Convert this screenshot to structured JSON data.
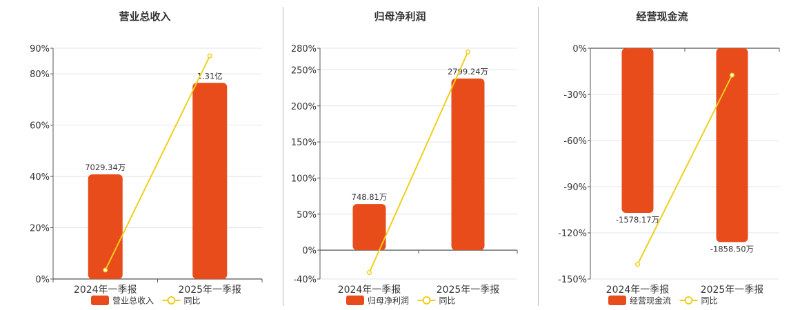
{
  "chart_data": [
    {
      "type": "bar",
      "title": "营业总收入",
      "categories": [
        "2024年一季报",
        "2025年一季报"
      ],
      "y_ticks": [
        "90%",
        "80%",
        "60%",
        "40%",
        "20%",
        "0%"
      ],
      "ylim": [
        0,
        90
      ],
      "grid": true,
      "legend_position": "bottom",
      "series": [
        {
          "name": "营业总收入",
          "type": "bar",
          "values": [
            40.8,
            76.5
          ],
          "labels": [
            "7029.34万",
            "1.31亿"
          ]
        },
        {
          "name": "同比",
          "type": "line",
          "values": [
            3.5,
            87
          ]
        }
      ]
    },
    {
      "type": "bar",
      "title": "归母净利润",
      "categories": [
        "2024年一季报",
        "2025年一季报"
      ],
      "y_ticks": [
        "280%",
        "250%",
        "200%",
        "150%",
        "100%",
        "50%",
        "0%",
        "-40%"
      ],
      "ylim": [
        -40,
        280
      ],
      "grid": true,
      "legend_position": "bottom",
      "series": [
        {
          "name": "归母净利润",
          "type": "bar",
          "values": [
            64,
            238
          ],
          "labels": [
            "748.81万",
            "2799.24万"
          ]
        },
        {
          "name": "同比",
          "type": "line",
          "values": [
            -31,
            275
          ]
        }
      ]
    },
    {
      "type": "bar",
      "title": "经营现金流",
      "categories": [
        "2024年一季报",
        "2025年一季报"
      ],
      "y_ticks": [
        "0%",
        "-30%",
        "-60%",
        "-90%",
        "-120%",
        "-150%"
      ],
      "ylim": [
        -150,
        0
      ],
      "grid": true,
      "legend_position": "bottom",
      "series": [
        {
          "name": "经营现金流",
          "type": "bar",
          "values": [
            -107,
            -126
          ],
          "labels": [
            "-1578.17万",
            "-1858.50万"
          ]
        },
        {
          "name": "同比",
          "type": "line",
          "values": [
            -140.5,
            -17.5
          ]
        }
      ]
    }
  ],
  "colors": {
    "bar": "#e84c1b",
    "line": "#f0cf1a",
    "grid": "#e0e4ee",
    "axis": "#555555",
    "divider": "#b7b7b7"
  }
}
